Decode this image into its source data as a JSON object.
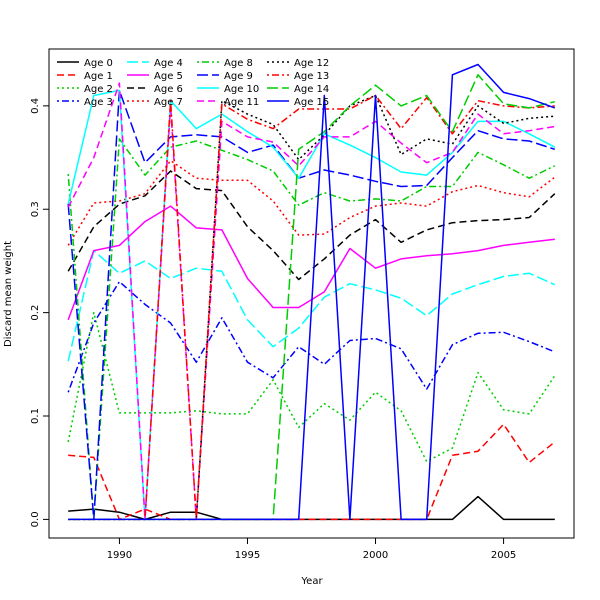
{
  "chart_data": {
    "type": "line",
    "xlabel": "Year",
    "ylabel": "Discard mean weight",
    "xlim": [
      1987.25,
      2007.75
    ],
    "ylim": [
      -0.018,
      0.455
    ],
    "xticks": [
      1990,
      1995,
      2000,
      2005
    ],
    "yticks": [
      0.0,
      0.1,
      0.2,
      0.3,
      0.4
    ],
    "legend_position": "top-left",
    "grid": false,
    "x": [
      1988,
      1989,
      1990,
      1991,
      1992,
      1993,
      1994,
      1995,
      1996,
      1997,
      1998,
      1999,
      2000,
      2001,
      2002,
      2003,
      2004,
      2005,
      2006,
      2007
    ],
    "series": [
      {
        "name": "Age 0",
        "color": "#000000",
        "dash": "solid",
        "values": [
          0.008,
          0.01,
          0.007,
          0.0,
          0.007,
          0.007,
          0.0,
          0.0,
          0.0,
          0.0,
          0.0,
          0.0,
          0.0,
          0.0,
          0.0,
          0.0,
          0.022,
          0.0,
          0.0,
          0.0
        ]
      },
      {
        "name": "Age 1",
        "color": "#ff0000",
        "dash": "long",
        "values": [
          0.062,
          0.06,
          0.0,
          0.01,
          0.0,
          0.0,
          0.0,
          0.0,
          0.0,
          0.0,
          0.0,
          0.0,
          0.0,
          0.0,
          0.0,
          0.062,
          0.066,
          0.092,
          0.055,
          0.075
        ]
      },
      {
        "name": "Age 2",
        "color": "#00cd00",
        "dash": "dot",
        "values": [
          0.075,
          0.2,
          0.103,
          0.103,
          0.103,
          0.105,
          0.102,
          0.102,
          0.135,
          0.089,
          0.112,
          0.096,
          0.123,
          0.105,
          0.056,
          0.069,
          0.142,
          0.106,
          0.102,
          0.139
        ]
      },
      {
        "name": "Age 3",
        "color": "#0000ff",
        "dash": "dotdash",
        "values": [
          0.123,
          0.19,
          0.23,
          0.208,
          0.19,
          0.152,
          0.195,
          0.152,
          0.137,
          0.167,
          0.15,
          0.173,
          0.175,
          0.165,
          0.126,
          0.169,
          0.18,
          0.181,
          0.172,
          0.162
        ]
      },
      {
        "name": "Age 4",
        "color": "#00ffff",
        "dash": "longdash",
        "values": [
          0.153,
          0.26,
          0.238,
          0.25,
          0.233,
          0.243,
          0.24,
          0.193,
          0.167,
          0.185,
          0.215,
          0.228,
          0.222,
          0.214,
          0.197,
          0.218,
          0.227,
          0.235,
          0.238,
          0.227
        ]
      },
      {
        "name": "Age 5",
        "color": "#ff00ff",
        "dash": "solid",
        "values": [
          0.193,
          0.26,
          0.265,
          0.288,
          0.303,
          0.282,
          0.28,
          0.233,
          0.205,
          0.205,
          0.22,
          0.262,
          0.243,
          0.252,
          0.255,
          0.257,
          0.26,
          0.265,
          0.268,
          0.271
        ]
      },
      {
        "name": "Age 6",
        "color": "#000000",
        "dash": "long",
        "values": [
          0.24,
          0.283,
          0.305,
          0.313,
          0.337,
          0.32,
          0.318,
          0.283,
          0.26,
          0.232,
          0.252,
          0.275,
          0.29,
          0.268,
          0.28,
          0.287,
          0.289,
          0.29,
          0.292,
          0.315
        ]
      },
      {
        "name": "Age 7",
        "color": "#ff0000",
        "dash": "dot",
        "values": [
          0.265,
          0.306,
          0.308,
          0.315,
          0.347,
          0.33,
          0.328,
          0.328,
          0.308,
          0.275,
          0.276,
          0.292,
          0.303,
          0.306,
          0.303,
          0.317,
          0.323,
          0.316,
          0.312,
          0.331
        ]
      },
      {
        "name": "Age 8",
        "color": "#00cd00",
        "dash": "dotdash",
        "values": [
          0.334,
          0.0,
          0.368,
          0.333,
          0.36,
          0.366,
          0.357,
          0.348,
          0.337,
          0.304,
          0.316,
          0.308,
          0.31,
          0.308,
          0.322,
          0.322,
          0.355,
          0.343,
          0.33,
          0.342
        ]
      },
      {
        "name": "Age 9",
        "color": "#0000ff",
        "dash": "longdash",
        "values": [
          0.305,
          0.0,
          0.415,
          0.345,
          0.37,
          0.372,
          0.37,
          0.355,
          0.362,
          0.33,
          0.338,
          0.333,
          0.327,
          0.322,
          0.323,
          0.35,
          0.376,
          0.368,
          0.366,
          0.358
        ]
      },
      {
        "name": "Age 10",
        "color": "#00ffff",
        "dash": "solid",
        "values": [
          0.305,
          0.41,
          0.415,
          0.0,
          0.405,
          0.378,
          0.392,
          0.375,
          0.36,
          0.33,
          0.373,
          0.362,
          0.35,
          0.336,
          0.333,
          0.355,
          0.385,
          0.385,
          0.373,
          0.36
        ]
      },
      {
        "name": "Age 11",
        "color": "#ff00ff",
        "dash": "long",
        "values": [
          0.302,
          0.35,
          0.422,
          0.0,
          0.4,
          0.0,
          0.385,
          0.37,
          0.365,
          0.342,
          0.37,
          0.37,
          0.385,
          0.364,
          0.345,
          0.355,
          0.392,
          0.373,
          0.376,
          0.38
        ]
      },
      {
        "name": "Age 12",
        "color": "#000000",
        "dash": "dot",
        "values": [
          0.0,
          0.0,
          0.0,
          0.0,
          0.0,
          0.0,
          0.405,
          0.392,
          0.382,
          0.348,
          0.372,
          0.4,
          0.41,
          0.353,
          0.368,
          0.363,
          0.4,
          0.383,
          0.388,
          0.39
        ]
      },
      {
        "name": "Age 13",
        "color": "#ff0000",
        "dash": "dotdash",
        "values": [
          0.0,
          0.0,
          0.0,
          0.0,
          0.405,
          0.0,
          0.402,
          0.387,
          0.378,
          0.397,
          0.397,
          0.397,
          0.41,
          0.378,
          0.408,
          0.373,
          0.405,
          0.4,
          0.398,
          0.4
        ]
      },
      {
        "name": "Age 14",
        "color": "#00cd00",
        "dash": "longdash",
        "values": [
          0.0,
          0.0,
          0.0,
          0.0,
          0.0,
          0.0,
          0.0,
          0.0,
          0.0,
          0.358,
          0.375,
          0.4,
          0.42,
          0.4,
          0.41,
          0.375,
          0.43,
          0.402,
          0.398,
          0.404
        ]
      },
      {
        "name": "Age 15",
        "color": "#0000ff",
        "dash": "solid",
        "values": [
          0.0,
          0.0,
          0.0,
          0.0,
          0.0,
          0.0,
          0.0,
          0.0,
          0.0,
          0.0,
          0.41,
          0.0,
          0.41,
          0.0,
          0.0,
          0.43,
          0.44,
          0.413,
          0.407,
          0.398
        ]
      }
    ]
  }
}
